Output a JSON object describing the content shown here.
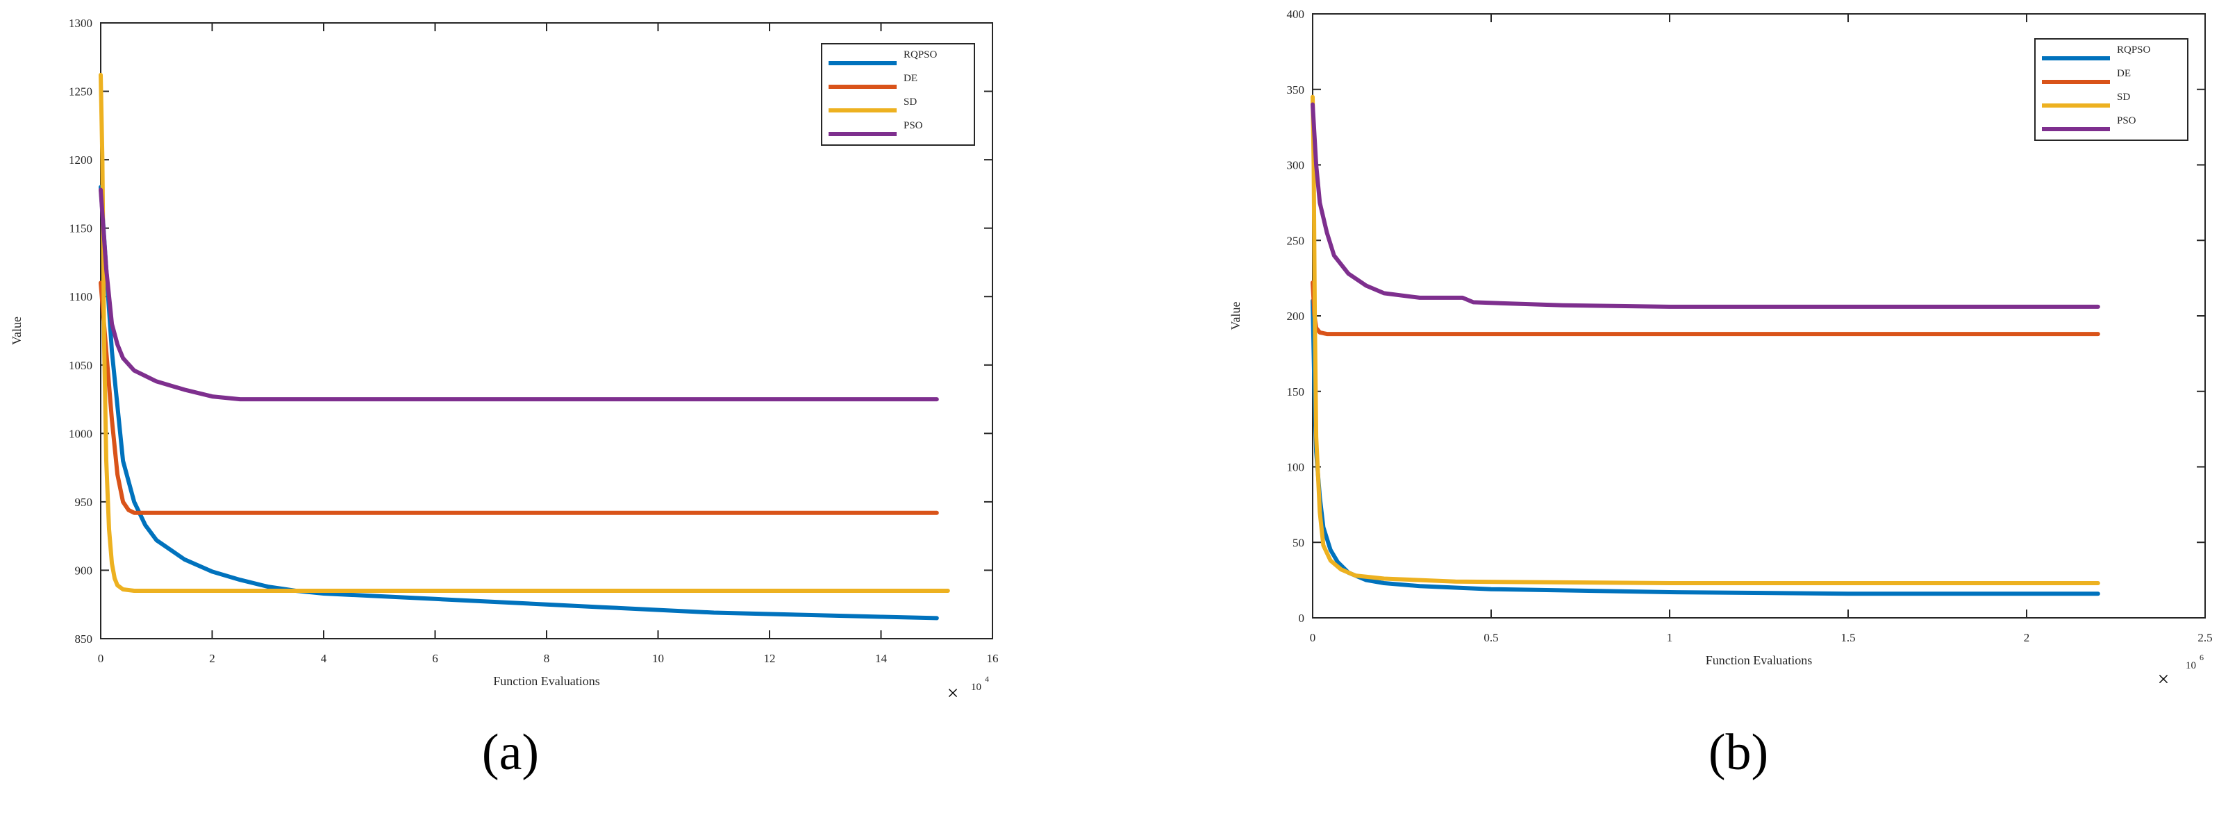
{
  "colors": {
    "RQPSO": "#0072BD",
    "DE": "#D95319",
    "SD": "#EDB120",
    "PSO": "#7E2F8E"
  },
  "chart_data": [
    {
      "panel_label": "(a)",
      "type": "line",
      "xlabel": "Function Evaluations",
      "ylabel": "Value",
      "xlim": [
        0,
        16
      ],
      "ylim": [
        850,
        1300
      ],
      "xticks": [
        0,
        2,
        4,
        6,
        8,
        10,
        12,
        14,
        16
      ],
      "yticks": [
        850,
        900,
        950,
        1000,
        1050,
        1100,
        1150,
        1200,
        1250,
        1300
      ],
      "xticklabels": [
        "0",
        "2",
        "4",
        "6",
        "8",
        "10",
        "12",
        "14",
        "16"
      ],
      "yticklabels": [
        "850",
        "900",
        "950",
        "1000",
        "1050",
        "1100",
        "1150",
        "1200",
        "1250",
        "1300"
      ],
      "exponent_text": "10",
      "exponent_power": "4",
      "legend_position": "top-right",
      "grid": false,
      "series": [
        {
          "name": "RQPSO",
          "x": [
            0,
            0.2,
            0.4,
            0.6,
            0.8,
            1.0,
            1.5,
            2.0,
            2.5,
            3.0,
            3.5,
            4.0,
            5.0,
            6.0,
            7.0,
            8.0,
            9.0,
            10.0,
            11.0,
            12.0,
            13.0,
            14.0,
            15.0
          ],
          "values": [
            1180,
            1060,
            980,
            950,
            933,
            922,
            908,
            899,
            893,
            888,
            885,
            883,
            881,
            879,
            877,
            875,
            873,
            871,
            869,
            868,
            867,
            866,
            865
          ]
        },
        {
          "name": "DE",
          "x": [
            0,
            0.1,
            0.2,
            0.3,
            0.4,
            0.5,
            0.6,
            1.0,
            15.0
          ],
          "values": [
            1110,
            1060,
            1010,
            970,
            950,
            944,
            942,
            942,
            942
          ]
        },
        {
          "name": "SD",
          "x": [
            0,
            0.03,
            0.06,
            0.1,
            0.15,
            0.2,
            0.25,
            0.3,
            0.4,
            0.6,
            1.0,
            15.2
          ],
          "values": [
            1262,
            1200,
            1070,
            980,
            930,
            905,
            894,
            889,
            886,
            885,
            885,
            885
          ]
        },
        {
          "name": "PSO",
          "x": [
            0,
            0.1,
            0.2,
            0.3,
            0.4,
            0.6,
            0.8,
            1.0,
            1.5,
            2.0,
            2.5,
            15.0
          ],
          "values": [
            1178,
            1120,
            1080,
            1065,
            1055,
            1046,
            1042,
            1038,
            1032,
            1027,
            1025,
            1025
          ]
        }
      ]
    },
    {
      "panel_label": "(b)",
      "type": "line",
      "xlabel": "Function Evaluations",
      "ylabel": "Value",
      "xlim": [
        0,
        2.5
      ],
      "ylim": [
        0,
        400
      ],
      "xticks": [
        0,
        0.5,
        1,
        1.5,
        2,
        2.5
      ],
      "yticks": [
        0,
        50,
        100,
        150,
        200,
        250,
        300,
        350,
        400
      ],
      "xticklabels": [
        "0",
        "0.5",
        "1",
        "1.5",
        "2",
        "2.5"
      ],
      "yticklabels": [
        "0",
        "50",
        "100",
        "150",
        "200",
        "250",
        "300",
        "350",
        "400"
      ],
      "exponent_text": "10",
      "exponent_power": "6",
      "legend_position": "top-right",
      "grid": false,
      "series": [
        {
          "name": "RQPSO",
          "x": [
            0,
            0.005,
            0.01,
            0.02,
            0.03,
            0.05,
            0.07,
            0.1,
            0.15,
            0.2,
            0.3,
            0.5,
            1.0,
            1.5,
            2.2
          ],
          "values": [
            210,
            150,
            110,
            80,
            60,
            45,
            37,
            30,
            25,
            23,
            21,
            19,
            17,
            16,
            16
          ]
        },
        {
          "name": "DE",
          "x": [
            0,
            0.005,
            0.01,
            0.02,
            0.04,
            2.2
          ],
          "values": [
            222,
            200,
            192,
            189,
            188,
            188
          ]
        },
        {
          "name": "SD",
          "x": [
            0,
            0.003,
            0.006,
            0.01,
            0.02,
            0.03,
            0.05,
            0.08,
            0.12,
            0.2,
            0.4,
            1.0,
            2.2
          ],
          "values": [
            345,
            300,
            200,
            120,
            70,
            48,
            38,
            32,
            28,
            26,
            24,
            23,
            23
          ]
        },
        {
          "name": "PSO",
          "x": [
            0,
            0.01,
            0.02,
            0.04,
            0.06,
            0.1,
            0.15,
            0.2,
            0.3,
            0.42,
            0.45,
            0.7,
            1.0,
            2.2
          ],
          "values": [
            340,
            300,
            275,
            255,
            240,
            228,
            220,
            215,
            212,
            212,
            209,
            207,
            206,
            206
          ]
        }
      ]
    }
  ]
}
